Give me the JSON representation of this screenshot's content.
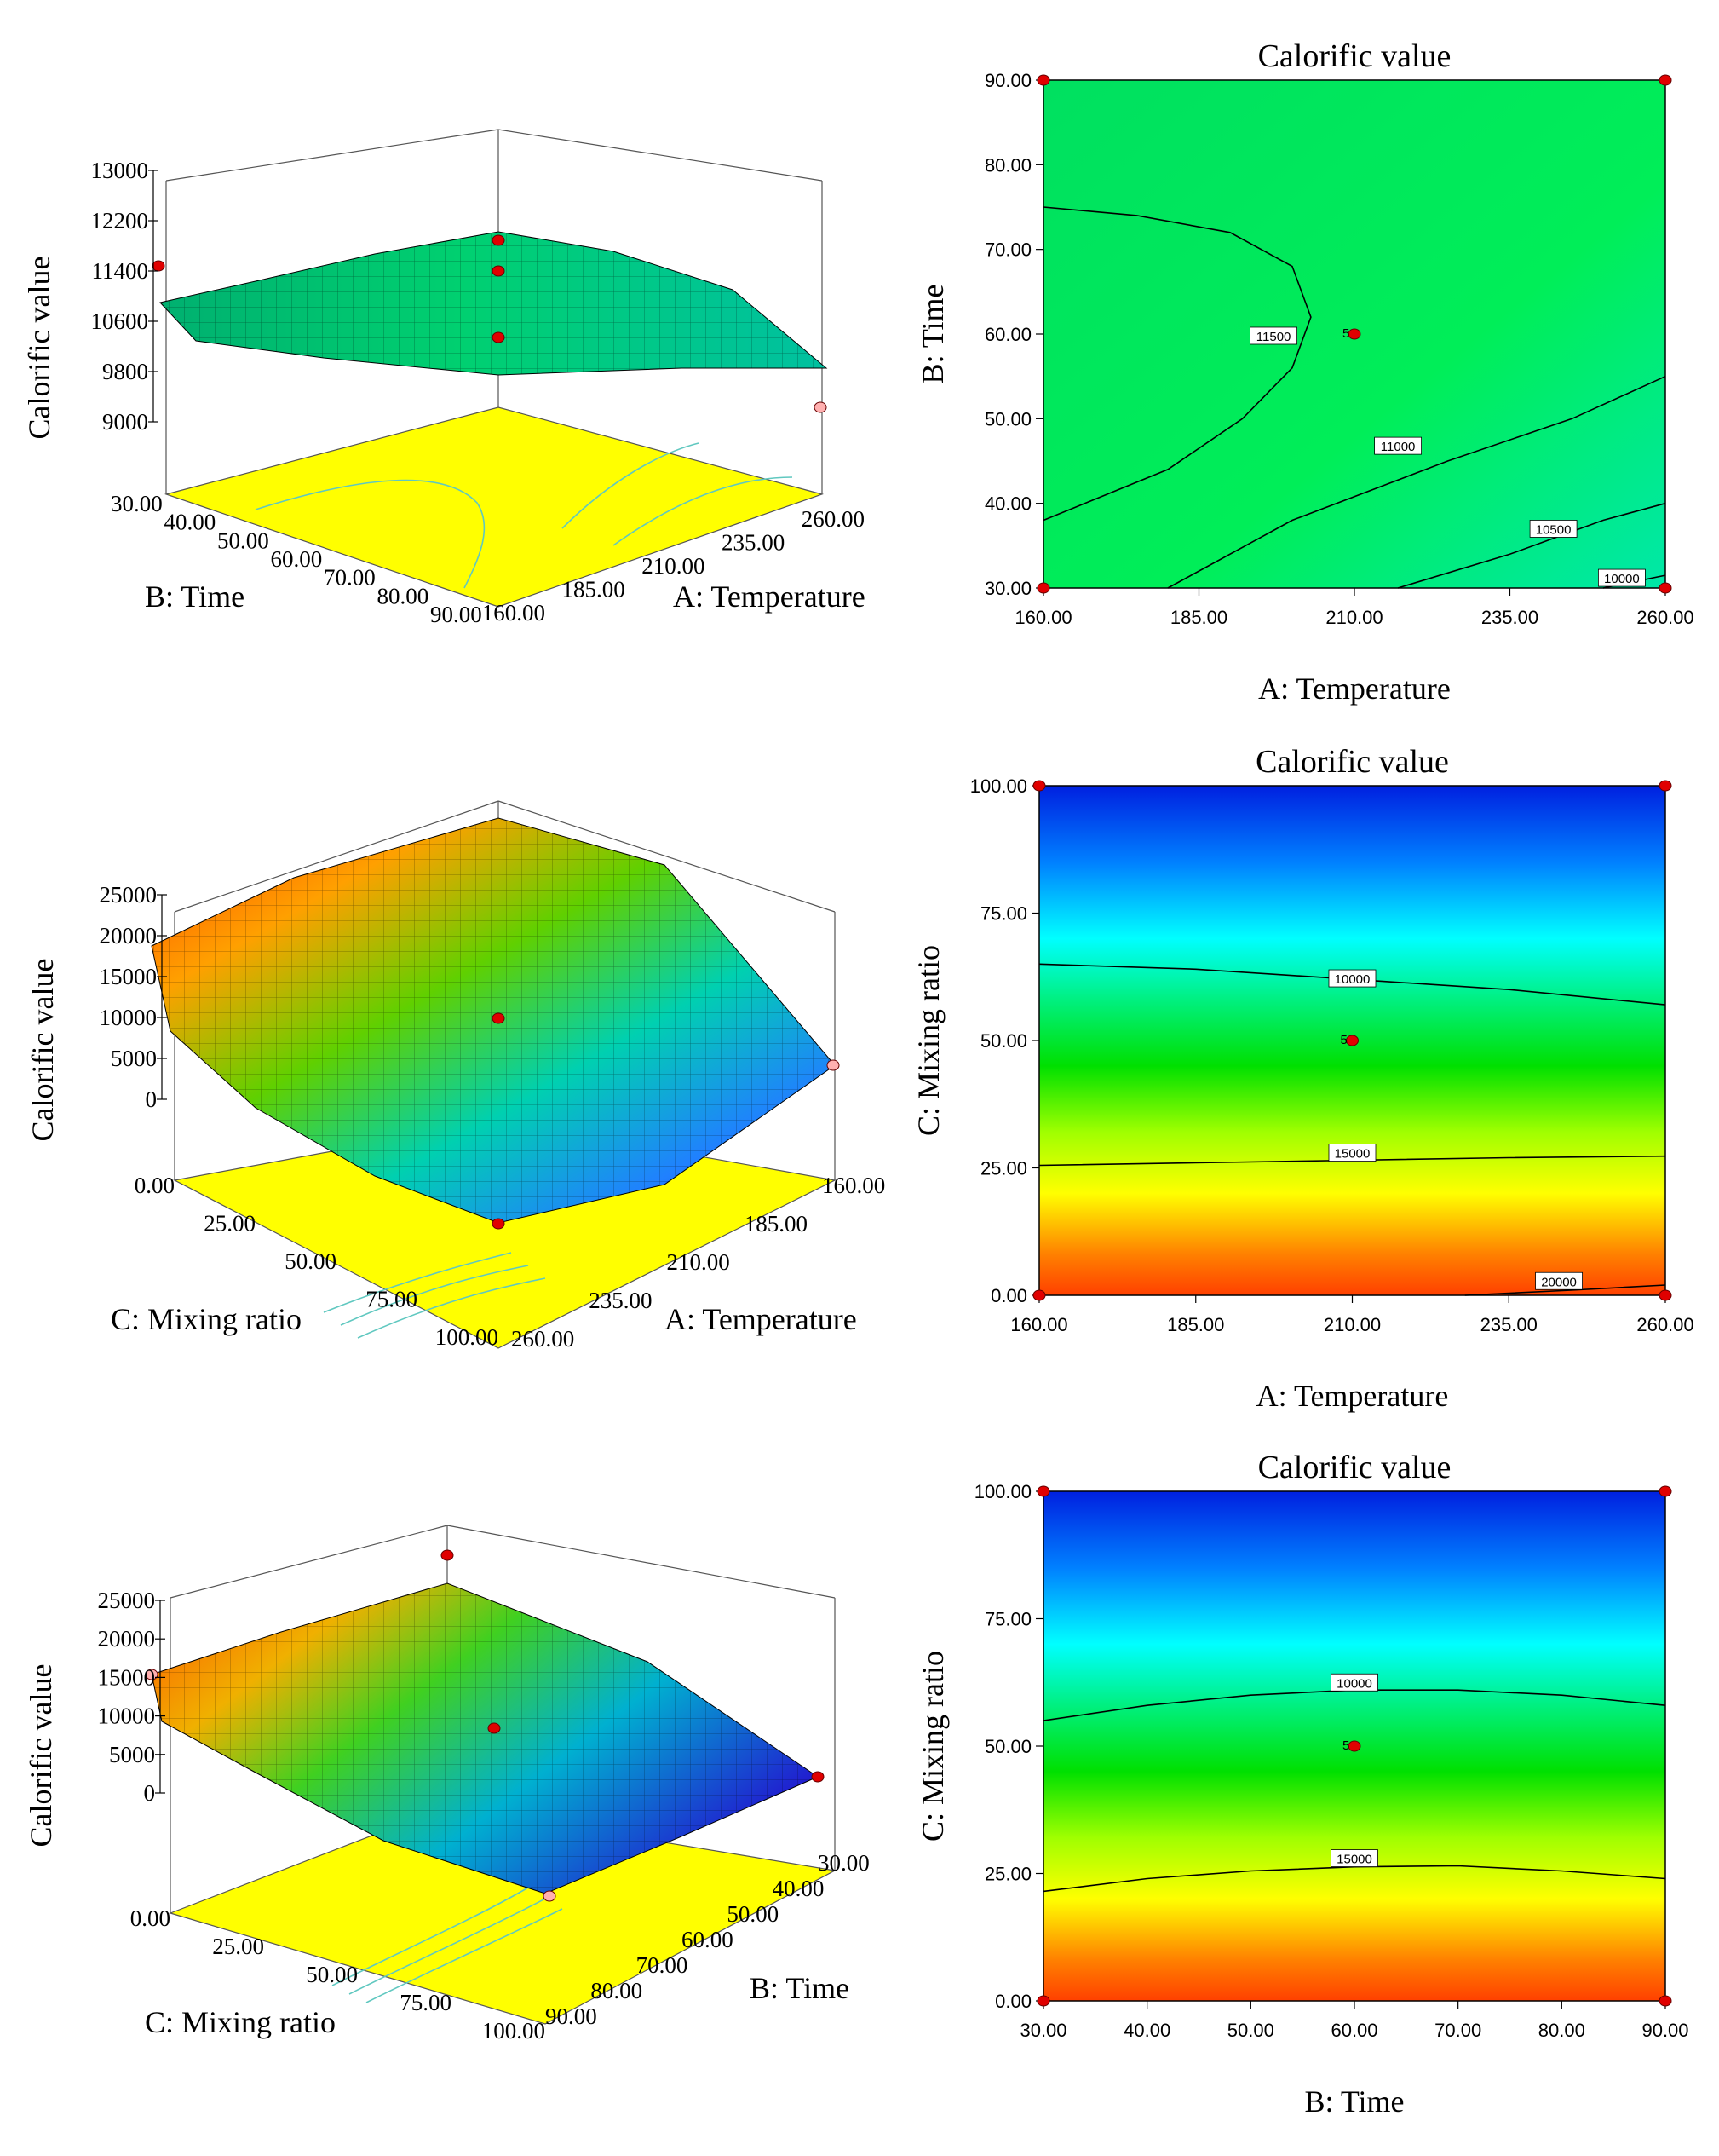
{
  "chart_data": [
    {
      "type": "surface",
      "title": "",
      "xlabel": "A: Temperature",
      "ylabel": "B: Time",
      "zlabel": "Calorific value",
      "x_ticks": [
        "160.00",
        "185.00",
        "210.00",
        "235.00",
        "260.00"
      ],
      "y_ticks": [
        "30.00",
        "40.00",
        "50.00",
        "60.00",
        "70.00",
        "80.00",
        "90.00"
      ],
      "z_ticks": [
        "9000",
        "9800",
        "10600",
        "11400",
        "12200",
        "13000"
      ],
      "xlim": [
        160,
        260
      ],
      "ylim": [
        30,
        90
      ],
      "zlim": [
        9000,
        13000
      ],
      "colors": {
        "low": "#00c8b0",
        "high": "#00e060",
        "floor": "#ffff00"
      }
    },
    {
      "type": "contour",
      "title": "Calorific value",
      "xlabel": "A: Temperature",
      "ylabel": "B: Time",
      "x_ticks": [
        "160.00",
        "185.00",
        "210.00",
        "235.00",
        "260.00"
      ],
      "y_ticks": [
        "30.00",
        "40.00",
        "50.00",
        "60.00",
        "70.00",
        "80.00",
        "90.00"
      ],
      "xlim": [
        160,
        260
      ],
      "ylim": [
        30,
        90
      ],
      "contour_levels": [
        "11500",
        "11000",
        "10500",
        "10000"
      ],
      "center_point_label": "5",
      "design_points": [
        [
          160,
          30
        ],
        [
          260,
          30
        ],
        [
          160,
          90
        ],
        [
          260,
          90
        ],
        [
          210,
          60
        ]
      ]
    },
    {
      "type": "surface",
      "title": "",
      "xlabel": "C: Mixing ratio",
      "ylabel": "A: Temperature",
      "zlabel": "Calorific value",
      "x_ticks": [
        "0.00",
        "25.00",
        "50.00",
        "75.00",
        "100.00"
      ],
      "y_ticks": [
        "160.00",
        "185.00",
        "210.00",
        "235.00",
        "260.00"
      ],
      "z_ticks": [
        "0",
        "5000",
        "10000",
        "15000",
        "20000",
        "25000"
      ],
      "xlim": [
        0,
        100
      ],
      "ylim": [
        160,
        260
      ],
      "zlim": [
        0,
        25000
      ],
      "colors": {
        "low": "#2020e0",
        "mid": "#00e000",
        "high": "#ff4000",
        "floor": "#ffff00"
      }
    },
    {
      "type": "contour",
      "title": "Calorific value",
      "xlabel": "A: Temperature",
      "ylabel": "C: Mixing ratio",
      "x_ticks": [
        "160.00",
        "185.00",
        "210.00",
        "235.00",
        "260.00"
      ],
      "y_ticks": [
        "0.00",
        "25.00",
        "50.00",
        "75.00",
        "100.00"
      ],
      "xlim": [
        160,
        260
      ],
      "ylim": [
        0,
        100
      ],
      "contour_levels": [
        "10000",
        "15000",
        "20000"
      ],
      "center_point_label": "5",
      "design_points": [
        [
          160,
          0
        ],
        [
          260,
          0
        ],
        [
          160,
          100
        ],
        [
          260,
          100
        ],
        [
          210,
          50
        ]
      ]
    },
    {
      "type": "surface",
      "title": "",
      "xlabel": "C: Mixing ratio",
      "ylabel": "B: Time",
      "zlabel": "Calorific value",
      "x_ticks": [
        "0.00",
        "25.00",
        "50.00",
        "75.00",
        "100.00"
      ],
      "y_ticks": [
        "30.00",
        "40.00",
        "50.00",
        "60.00",
        "70.00",
        "80.00",
        "90.00"
      ],
      "z_ticks": [
        "0",
        "5000",
        "10000",
        "15000",
        "20000",
        "25000"
      ],
      "xlim": [
        0,
        100
      ],
      "ylim": [
        30,
        90
      ],
      "zlim": [
        0,
        25000
      ],
      "colors": {
        "low": "#2020e0",
        "mid": "#00e000",
        "high": "#ff4000",
        "floor": "#ffff00"
      }
    },
    {
      "type": "contour",
      "title": "Calorific value",
      "xlabel": "B: Time",
      "ylabel": "C: Mixing ratio",
      "x_ticks": [
        "30.00",
        "40.00",
        "50.00",
        "60.00",
        "70.00",
        "80.00",
        "90.00"
      ],
      "y_ticks": [
        "0.00",
        "25.00",
        "50.00",
        "75.00",
        "100.00"
      ],
      "xlim": [
        30,
        90
      ],
      "ylim": [
        0,
        100
      ],
      "contour_levels": [
        "10000",
        "15000"
      ],
      "center_point_label": "5",
      "design_points": [
        [
          30,
          0
        ],
        [
          90,
          0
        ],
        [
          30,
          100
        ],
        [
          90,
          100
        ],
        [
          60,
          50
        ]
      ]
    }
  ]
}
